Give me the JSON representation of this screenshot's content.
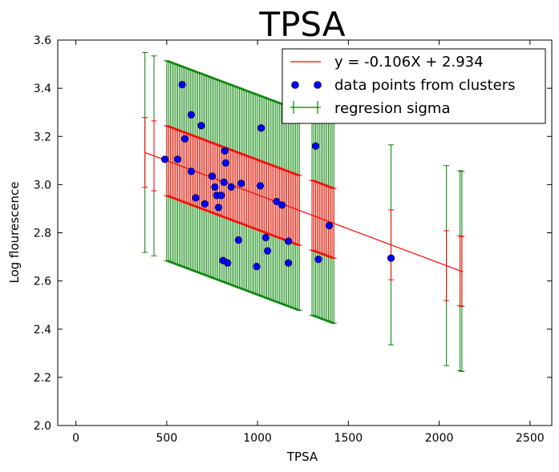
{
  "chart_data": {
    "type": "scatter",
    "title": "TPSA",
    "xlabel": "TPSA",
    "ylabel": "Log flourescence",
    "xlim": [
      -100,
      2620
    ],
    "ylim": [
      2.0,
      3.6
    ],
    "xticks": [
      0,
      500,
      1000,
      1500,
      2000,
      2500
    ],
    "yticks": [
      2.0,
      2.2,
      2.4,
      2.6,
      2.8,
      3.0,
      3.2,
      3.4,
      3.6
    ],
    "legend_position": "top-right",
    "legend": [
      {
        "label": "y = -0.106X + 2.934",
        "kind": "line",
        "color": "#ff0000"
      },
      {
        "label": "data points from clusters",
        "kind": "marker",
        "color": "#0000ff"
      },
      {
        "label": "regresion sigma",
        "kind": "errorbar",
        "color": "#008000"
      }
    ],
    "regression": {
      "slope_per_unit": -0.000283,
      "intercept": 3.241,
      "x_range": [
        380,
        2130
      ],
      "color": "#ff0000"
    },
    "sigma_red": 0.145,
    "sigma_green": 0.415,
    "colors": {
      "points": "#0000ff",
      "regression": "#ff0000",
      "sigma": "#008000"
    },
    "points": [
      [
        490,
        3.105
      ],
      [
        560,
        3.105
      ],
      [
        585,
        3.415
      ],
      [
        600,
        3.19
      ],
      [
        635,
        3.29
      ],
      [
        635,
        3.055
      ],
      [
        660,
        2.945
      ],
      [
        690,
        3.245
      ],
      [
        710,
        2.92
      ],
      [
        750,
        3.035
      ],
      [
        765,
        2.99
      ],
      [
        775,
        2.955
      ],
      [
        785,
        2.905
      ],
      [
        800,
        2.955
      ],
      [
        810,
        2.685
      ],
      [
        815,
        3.01
      ],
      [
        820,
        3.14
      ],
      [
        825,
        3.09
      ],
      [
        835,
        2.675
      ],
      [
        855,
        2.99
      ],
      [
        895,
        2.77
      ],
      [
        910,
        3.005
      ],
      [
        995,
        2.66
      ],
      [
        1015,
        2.995
      ],
      [
        1020,
        3.235
      ],
      [
        1045,
        2.78
      ],
      [
        1055,
        2.725
      ],
      [
        1105,
        2.93
      ],
      [
        1135,
        2.915
      ],
      [
        1170,
        2.765
      ],
      [
        1170,
        2.675
      ],
      [
        1320,
        3.16
      ],
      [
        1335,
        2.69
      ],
      [
        1395,
        2.83
      ],
      [
        1735,
        2.695
      ]
    ],
    "errorbar_x": [
      380,
      430,
      500,
      510,
      520,
      530,
      540,
      550,
      560,
      570,
      580,
      590,
      600,
      610,
      620,
      630,
      640,
      650,
      660,
      670,
      680,
      690,
      700,
      710,
      720,
      730,
      740,
      750,
      760,
      770,
      780,
      790,
      800,
      810,
      820,
      830,
      840,
      850,
      860,
      870,
      880,
      890,
      900,
      910,
      920,
      930,
      940,
      950,
      960,
      970,
      980,
      990,
      1000,
      1010,
      1020,
      1030,
      1040,
      1050,
      1060,
      1070,
      1080,
      1090,
      1100,
      1110,
      1120,
      1130,
      1140,
      1150,
      1160,
      1170,
      1180,
      1190,
      1200,
      1210,
      1220,
      1230,
      1300,
      1310,
      1320,
      1330,
      1340,
      1350,
      1360,
      1370,
      1380,
      1390,
      1400,
      1410,
      1420,
      1735,
      2040,
      2115,
      2125
    ]
  }
}
